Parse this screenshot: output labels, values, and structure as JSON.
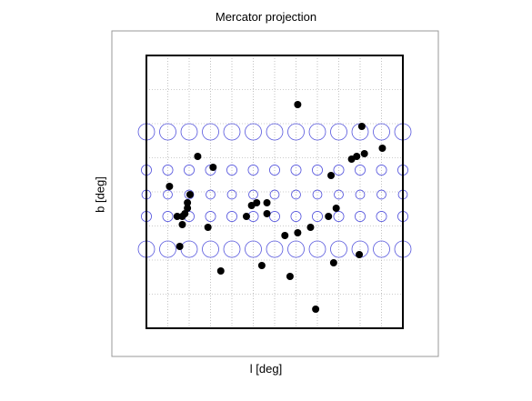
{
  "chart_data": {
    "type": "scatter",
    "title": "Mercator projection",
    "xlabel": "l [deg]",
    "ylabel": "b [deg]",
    "grid": true,
    "legend": "none",
    "colors": {
      "points": "#000000",
      "circles": "#5555dd",
      "grid": "#999999",
      "frame": "#000000",
      "outer_box": "#999999"
    },
    "reference_grid": {
      "lon_columns": [
        1,
        2,
        3,
        4,
        5,
        6,
        7,
        8,
        9,
        10,
        11
      ],
      "lat_rows": [
        {
          "b": 0.72,
          "size": 1.0
        },
        {
          "b": 0.58,
          "size": 0.62
        },
        {
          "b": 0.49,
          "size": 0.55
        },
        {
          "b": 0.41,
          "size": 0.62
        },
        {
          "b": 0.29,
          "size": 1.0
        }
      ]
    },
    "points": [
      {
        "x": 0.59,
        "y": 0.82
      },
      {
        "x": 0.84,
        "y": 0.74
      },
      {
        "x": 0.92,
        "y": 0.66
      },
      {
        "x": 0.2,
        "y": 0.63
      },
      {
        "x": 0.26,
        "y": 0.59
      },
      {
        "x": 0.85,
        "y": 0.64
      },
      {
        "x": 0.82,
        "y": 0.63
      },
      {
        "x": 0.8,
        "y": 0.62
      },
      {
        "x": 0.72,
        "y": 0.56
      },
      {
        "x": 0.09,
        "y": 0.52
      },
      {
        "x": 0.17,
        "y": 0.49
      },
      {
        "x": 0.16,
        "y": 0.46
      },
      {
        "x": 0.16,
        "y": 0.44
      },
      {
        "x": 0.15,
        "y": 0.42
      },
      {
        "x": 0.14,
        "y": 0.41
      },
      {
        "x": 0.12,
        "y": 0.41
      },
      {
        "x": 0.14,
        "y": 0.38
      },
      {
        "x": 0.24,
        "y": 0.37
      },
      {
        "x": 0.41,
        "y": 0.45
      },
      {
        "x": 0.43,
        "y": 0.46
      },
      {
        "x": 0.47,
        "y": 0.46
      },
      {
        "x": 0.39,
        "y": 0.41
      },
      {
        "x": 0.47,
        "y": 0.42
      },
      {
        "x": 0.54,
        "y": 0.34
      },
      {
        "x": 0.59,
        "y": 0.35
      },
      {
        "x": 0.64,
        "y": 0.37
      },
      {
        "x": 0.71,
        "y": 0.41
      },
      {
        "x": 0.74,
        "y": 0.44
      },
      {
        "x": 0.13,
        "y": 0.3
      },
      {
        "x": 0.29,
        "y": 0.21
      },
      {
        "x": 0.45,
        "y": 0.23
      },
      {
        "x": 0.56,
        "y": 0.19
      },
      {
        "x": 0.73,
        "y": 0.24
      },
      {
        "x": 0.83,
        "y": 0.27
      },
      {
        "x": 0.66,
        "y": 0.07
      }
    ]
  }
}
